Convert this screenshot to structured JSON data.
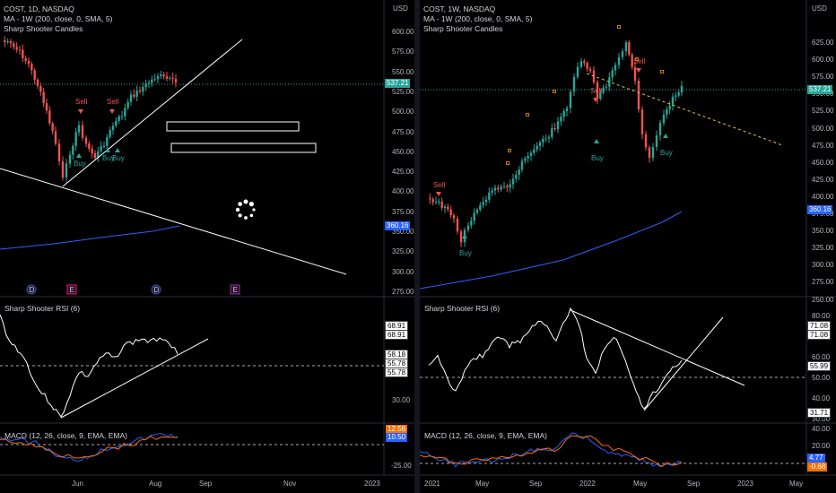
{
  "left": {
    "title": "COST, 1D, NASDAQ",
    "ma_label": "MA - 1W (200, close, 0, SMA, 5)",
    "candles_label": "Sharp Shooter Candles",
    "currency": "USD",
    "price_ticks": [
      "600.00",
      "575.00",
      "550.00",
      "525.00",
      "500.00",
      "475.00",
      "450.00",
      "425.00",
      "400.00",
      "375.00",
      "350.00",
      "325.00",
      "300.00",
      "275.00"
    ],
    "price_badge": "537.21",
    "ma_badge": "360.16",
    "signals": [
      {
        "text": "Sell",
        "type": "sell"
      },
      {
        "text": "Sell",
        "type": "sell"
      },
      {
        "text": "Buy",
        "type": "buy"
      },
      {
        "text": "Buy",
        "type": "buy"
      },
      {
        "text": "Buy",
        "type": "buy"
      }
    ],
    "events": [
      "D",
      "E",
      "D",
      "E"
    ],
    "rsi_label": "Sharp Shooter RSI (6)",
    "rsi_values": [
      "68.91",
      "68.91",
      "58.18",
      "55.78",
      "55.78",
      "30.00"
    ],
    "macd_label": "MACD (12, 26, close, 9, EMA, EMA)",
    "macd_values": [
      "12.56",
      "10.50",
      "-25.00"
    ],
    "x_ticks": [
      "Jun",
      "Aug",
      "Sep",
      "Nov",
      "2023"
    ]
  },
  "right": {
    "title": "COST, 1W, NASDAQ",
    "ma_label": "MA - 1W (200, close, 0, SMA, 5)",
    "candles_label": "Sharp Shooter Candles",
    "currency": "USD",
    "price_ticks": [
      "625.00",
      "600.00",
      "575.00",
      "550.00",
      "525.00",
      "500.00",
      "475.00",
      "450.00",
      "425.00",
      "400.00",
      "375.00",
      "350.00",
      "325.00",
      "300.00",
      "275.00",
      "250.00"
    ],
    "price_badge": "537.21",
    "ma_badge": "360.16",
    "signals": [
      {
        "text": "Sell",
        "type": "sell"
      },
      {
        "text": "Sell",
        "type": "sell"
      },
      {
        "text": "Sell",
        "type": "sell"
      },
      {
        "text": "Buy",
        "type": "buy"
      },
      {
        "text": "Buy",
        "type": "buy"
      },
      {
        "text": "Buy",
        "type": "buy"
      }
    ],
    "rsi_label": "Sharp Shooter RSI (6)",
    "rsi_ticks": [
      "80.00",
      "70.00",
      "60.00",
      "50.00",
      "40.00",
      "30.00"
    ],
    "rsi_values": [
      "71.08",
      "71.08",
      "55.99",
      "31.71"
    ],
    "macd_label": "MACD (12, 26, close, 9, EMA, EMA)",
    "macd_ticks": [
      "40.00",
      "20.00",
      "0.00"
    ],
    "macd_values": [
      "4.77",
      "-0.68"
    ],
    "x_ticks": [
      "2021",
      "May",
      "Sep",
      "2022",
      "May",
      "Sep",
      "2023",
      "May"
    ]
  },
  "colors": {
    "up": "#26a69a",
    "down": "#ef5350",
    "ma": "#2962ff",
    "macd": "#2962ff",
    "signal": "#ff6d00",
    "rsi": "#ffffff",
    "price_badge": "#26a69a"
  }
}
